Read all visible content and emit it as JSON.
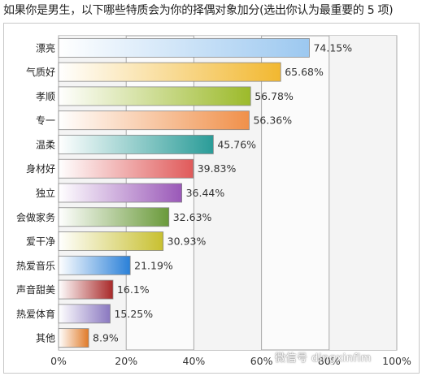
{
  "title": "如果你是男生，以下哪些特质会为你的择偶对象加分(选出你认为最重要的 5 项)",
  "watermark": "微信号 dingxinfim",
  "chart_data": {
    "type": "bar",
    "orientation": "horizontal",
    "categories": [
      "漂亮",
      "气质好",
      "孝顺",
      "专一",
      "温柔",
      "身材好",
      "独立",
      "会做家务",
      "爱干净",
      "热爱音乐",
      "声音甜美",
      "热爱体育",
      "其他"
    ],
    "values": [
      74.15,
      65.68,
      56.78,
      56.36,
      45.76,
      39.83,
      36.44,
      32.63,
      30.93,
      21.19,
      16.1,
      15.25,
      8.9
    ],
    "value_labels": [
      "74.15%",
      "65.68%",
      "56.78%",
      "56.36%",
      "45.76%",
      "39.83%",
      "36.44%",
      "32.63%",
      "30.93%",
      "21.19%",
      "16.1%",
      "15.25%",
      "8.9%"
    ],
    "x_ticks": [
      "0%",
      "20%",
      "40%",
      "60%",
      "80%",
      "100%"
    ],
    "xlim": [
      0,
      100
    ],
    "grid": true,
    "colors": [
      "#9cc8f0",
      "#f2b830",
      "#9cba2a",
      "#f0904a",
      "#2a9c98",
      "#e05a5a",
      "#9a58b8",
      "#6a9a3a",
      "#c8c030",
      "#2a80d8",
      "#a82828",
      "#8a78c0",
      "#e07a28"
    ]
  }
}
